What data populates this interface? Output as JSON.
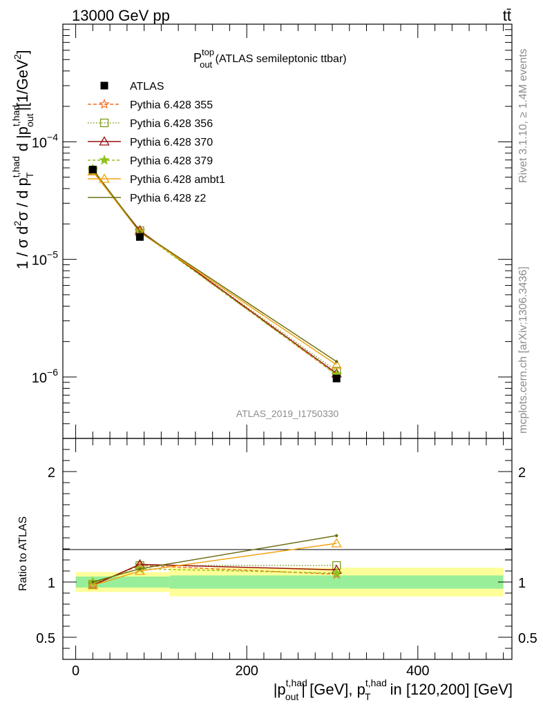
{
  "header": {
    "left": "13000 GeV pp",
    "right": "tt̄"
  },
  "side_labels": {
    "rivet": "Rivet 3.1.10, ≥ 1.4M events",
    "mcplots": "mcplots.cern.ch [arXiv:1306.3436]"
  },
  "chart_data": [
    {
      "type": "line",
      "panel": "main",
      "title": {
        "base": "P",
        "sup": "top",
        "sub": "out",
        "rest": " (ATLAS semileptonic ttbar)"
      },
      "ylabel": {
        "p1": "1 / σ d",
        "s1": "2",
        "p2": "σ / d p",
        "s2": "t,had",
        "b2": "T",
        "p3": " d |p",
        "s3": "t,had",
        "b3": "out",
        "p4": "|[1/GeV",
        "s4": "2",
        "p5": "]"
      },
      "yscale": "log",
      "ylim": [
        3e-07,
        0.001
      ],
      "xlim": [
        -15,
        510
      ],
      "y_ticks": [
        {
          "value": 1e-06,
          "base": "10",
          "exp": "−6"
        },
        {
          "value": 1e-05,
          "base": "10",
          "exp": "−5"
        },
        {
          "value": 0.0001,
          "base": "10",
          "exp": "−4"
        }
      ],
      "watermark": "ATLAS_2019_I1750330",
      "legend_position": "top-left",
      "x": [
        20,
        75,
        305
      ],
      "data": {
        "name": "ATLAS",
        "values": [
          5.8e-05,
          1.55e-05,
          9.7e-07
        ]
      },
      "series": [
        {
          "name": "Pythia 6.428 355",
          "color": "#f46d25",
          "dash": "5,3",
          "marker": "star-open",
          "values": [
            5.7e-05,
            1.75e-05,
            1.04e-06
          ]
        },
        {
          "name": "Pythia 6.428 356",
          "color": "#7a9a1c",
          "dash": "1.5,2.5",
          "marker": "square-open",
          "values": [
            5.7e-05,
            1.75e-05,
            1.12e-06
          ]
        },
        {
          "name": "Pythia 6.428 370",
          "color": "#990f0f",
          "dash": "",
          "marker": "triangle-open",
          "values": [
            5.6e-05,
            1.76e-05,
            1.07e-06
          ]
        },
        {
          "name": "Pythia 6.428 379",
          "color": "#8fc21c",
          "dash": "4,3",
          "marker": "star-filled",
          "values": [
            5.85e-05,
            1.72e-05,
            1.05e-06
          ]
        },
        {
          "name": "Pythia 6.428 ambt1",
          "color": "#f2a20e",
          "dash": "",
          "marker": "triangle-open",
          "values": [
            5.6e-05,
            1.7e-05,
            1.27e-06
          ]
        },
        {
          "name": "Pythia 6.428 z2",
          "color": "#6b7012",
          "dash": "",
          "marker": "dot",
          "values": [
            5.85e-05,
            1.72e-05,
            1.35e-06
          ]
        }
      ]
    },
    {
      "type": "line",
      "panel": "ratio",
      "ylabel": "Ratio to ATLAS",
      "ylim": [
        0.3,
        2.3
      ],
      "xlim": [
        -15,
        510
      ],
      "y_ticks": [
        {
          "value": 0.5,
          "label": "0.5"
        },
        {
          "value": 1,
          "label": "1"
        },
        {
          "value": 2,
          "label": "2"
        }
      ],
      "x_ticks": [
        {
          "value": 0,
          "label": "0"
        },
        {
          "value": 200,
          "label": "200"
        },
        {
          "value": 400,
          "label": "400"
        }
      ],
      "xlabel": {
        "p1": "|p",
        "s1": "t,had",
        "b1": "out",
        "p2": "| [GeV], p",
        "s2": "t,had",
        "b2": "T",
        "p3": " in [120,200] [GeV]"
      },
      "bands": [
        {
          "x0": 0,
          "x1": 110,
          "stat": [
            0.95,
            1.05
          ],
          "total": [
            0.91,
            1.09
          ]
        },
        {
          "x0": 110,
          "x1": 500,
          "stat": [
            0.94,
            1.06
          ],
          "total": [
            0.87,
            1.13
          ]
        }
      ],
      "band_colors": {
        "stat": "#99ee99",
        "total": "#ffff99"
      },
      "x": [
        20,
        75,
        305
      ],
      "series": [
        {
          "name": "Pythia 6.428 355",
          "values": [
            0.98,
            1.15,
            1.07
          ]
        },
        {
          "name": "Pythia 6.428 356",
          "values": [
            0.98,
            1.15,
            1.15
          ]
        },
        {
          "name": "Pythia 6.428 370",
          "values": [
            0.97,
            1.16,
            1.11
          ]
        },
        {
          "name": "Pythia 6.428 379",
          "values": [
            1.0,
            1.12,
            1.08
          ]
        },
        {
          "name": "Pythia 6.428 ambt1",
          "values": [
            0.97,
            1.1,
            1.35
          ]
        },
        {
          "name": "Pythia 6.428 z2",
          "values": [
            1.0,
            1.12,
            1.42
          ]
        }
      ]
    }
  ]
}
